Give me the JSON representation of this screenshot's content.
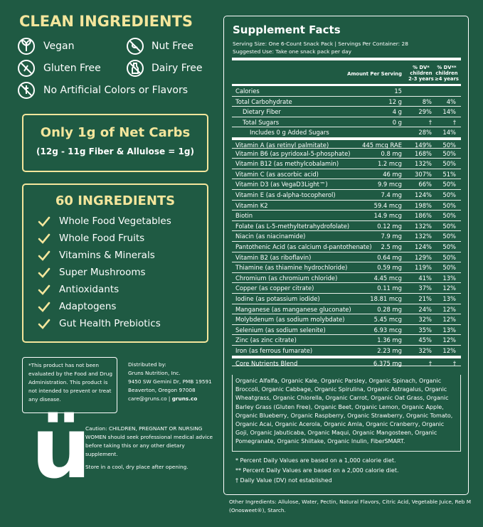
{
  "left": {
    "clean_title": "CLEAN INGREDIENTS",
    "badges": [
      "Vegan",
      "Nut Free",
      "Gluten Free",
      "Dairy Free",
      "No Artificial Colors or Flavors"
    ],
    "net_carbs": {
      "title": "Only 1g of Net Carbs",
      "detail": "(12g - 11g Fiber & Allulose = 1g)"
    },
    "ingredients_box": {
      "title": "60 INGREDIENTS",
      "items": [
        "Whole Food Vegetables",
        "Whole Food Fruits",
        "Vitamins & Minerals",
        "Super Mushrooms",
        "Antioxidants",
        "Adaptogens",
        "Gut Health Prebiotics"
      ]
    },
    "disclaimer": "*This product has not been evaluated by the Food and Drug Administration. This product is not intended to prevent or treat any disease.",
    "distributor": [
      "Distributed by:",
      "Gruns Nutrition, Inc.",
      "9450 SW Gemini Dr, PMB 19591",
      "Beaverton, Oregon 97008"
    ],
    "contact": [
      "care@gruns.co |",
      "gruns.co"
    ],
    "logo": "ü",
    "caution": "Caution: CHILDREN, PREGNANT OR NURSING WOMEN should seek professional medical advice before taking this or any other dietary supplement.",
    "storage": "Store in a cool, dry place after opening."
  },
  "facts": {
    "title": "Supplement Facts",
    "serving": [
      "Serving Size: One 6-Count Snack Pack | Servings Per Container: 28",
      "Suggested Use: Take one snack pack per day"
    ],
    "headers": {
      "amount": "Amount Per Serving",
      "dv_child": [
        "% DV*",
        "children",
        "2-3 years"
      ],
      "dv_adult": [
        "% DV**",
        "children",
        "≥4 years"
      ]
    },
    "rows": [
      {
        "name": "Calories",
        "amount": "15"
      },
      {
        "name": "Total Carbohydrate",
        "amount": "12 g",
        "dv_child": "8%",
        "dv_adult": "4%",
        "sub_rows": [
          {
            "name": "Dietary Fiber",
            "amount": "4 g",
            "dv_child": "29%",
            "dv_adult": "14%"
          },
          {
            "name": "Total Sugars",
            "amount": "0 g",
            "dv_child": "†",
            "dv_adult": "†",
            "sub_rows": [
              {
                "name": "Includes 0 g Added Sugars",
                "dv_child": "28%",
                "dv_adult": "14%"
              }
            ]
          }
        ]
      },
      {
        "name": "Vitamin A (as retinyl palmitate)",
        "amount": "445 mcg RAE",
        "dv_child": "149%",
        "dv_adult": "50%"
      },
      {
        "name": "Vitamin B6 (as pyridoxal-5-phosphate)",
        "amount": "0.8 mg",
        "dv_child": "168%",
        "dv_adult": "50%"
      },
      {
        "name": "Vitamin B12 (as methylcobalamin)",
        "amount": "1.2 mcg",
        "dv_child": "132%",
        "dv_adult": "50%"
      },
      {
        "name": "Vitamin C (as ascorbic acid)",
        "amount": "46 mg",
        "dv_child": "307%",
        "dv_adult": "51%"
      },
      {
        "name": "Vitamin D3 (as VegaD3Light™)",
        "amount": "9.9 mcg",
        "dv_child": "66%",
        "dv_adult": "50%"
      },
      {
        "name": "Vitamin E (as d-alpha-tocopherol)",
        "amount": "7.4 mg",
        "dv_child": "124%",
        "dv_adult": "50%"
      },
      {
        "name": "Vitamin K2",
        "amount": "59.4 mcg",
        "dv_child": "198%",
        "dv_adult": "50%"
      },
      {
        "name": "Biotin",
        "amount": "14.9 mcg",
        "dv_child": "186%",
        "dv_adult": "50%"
      },
      {
        "name": "Folate (as L-5-methyltetrahydrofolate)",
        "amount": "0.12 mg",
        "dv_child": "132%",
        "dv_adult": "50%"
      },
      {
        "name": "Niacin (as niacinamide)",
        "amount": "7.9 mg",
        "dv_child": "132%",
        "dv_adult": "50%"
      },
      {
        "name": "Pantothenic Acid (as calcium d-pantothenate)",
        "amount": "2.5 mg",
        "dv_child": "124%",
        "dv_adult": "50%"
      },
      {
        "name": "Vitamin B2 (as riboflavin)",
        "amount": "0.64 mg",
        "dv_child": "129%",
        "dv_adult": "50%"
      },
      {
        "name": "Thiamine (as thiamine hydrochloride)",
        "amount": "0.59 mg",
        "dv_child": "119%",
        "dv_adult": "50%"
      },
      {
        "name": "Chromium (as chromium chloride)",
        "amount": "4.45 mcg",
        "dv_child": "41%",
        "dv_adult": "13%"
      },
      {
        "name": "Copper (as copper citrate)",
        "amount": "0.11 mg",
        "dv_child": "37%",
        "dv_adult": "12%"
      },
      {
        "name": "Iodine (as potassium iodide)",
        "amount": "18.81 mcg",
        "dv_child": "21%",
        "dv_adult": "13%"
      },
      {
        "name": "Manganese (as manganese gluconate)",
        "amount": "0.28 mg",
        "dv_child": "24%",
        "dv_adult": "12%"
      },
      {
        "name": "Molybdenum (as sodium molybdate)",
        "amount": "5.45 mcg",
        "dv_child": "32%",
        "dv_adult": "12%"
      },
      {
        "name": "Selenium (as sodium selenite)",
        "amount": "6.93 mcg",
        "dv_child": "35%",
        "dv_adult": "13%"
      },
      {
        "name": "Zinc (as zinc citrate)",
        "amount": "1.36 mg",
        "dv_child": "45%",
        "dv_adult": "12%"
      },
      {
        "name": "Iron (as ferrous fumarate)",
        "amount": "2.23 mg",
        "dv_child": "32%",
        "dv_adult": "12%"
      },
      {
        "name": "Core Nutrients Blend",
        "amount": "6,375 mg",
        "dv_child": "†",
        "dv_adult": "†"
      }
    ],
    "blend": "Organic Alfalfa, Organic Kale, Organic Parsley, Organic Spinach, Organic Broccoli, Organic Cabbage, Organic Spirulina, Organic Astragalus, Organic Wheatgrass, Organic Chlorella, Organic Carrot, Organic Oat Grass, Organic Barley Grass (Gluten Free), Organic Beet, Organic Lemon, Organic Apple, Organic Blueberry, Organic Raspberry, Organic Strawberry, Organic Tomato, Organic Acai, Organic Acerola, Organic Amla, Organic Cranberry, Organic Goji, Organic Jabuticaba, Organic Maqui, Organic Mangosteen, Organic Pomegranate, Organic Shiitake, Organic Inulin, FiberSMART.",
    "footnotes": [
      "* Percent Daily Values are based on a 1,000 calorie diet.",
      "** Percent Daily Values are based on a 2,000 calorie diet.",
      "† Daily Value (DV) not established"
    ],
    "other_ingredients": "Other Ingredients: Allulose, Water, Pectin, Natural Flavors, Citric Acid, Vegetable Juice, Reb M (Onosweet®), Starch."
  }
}
